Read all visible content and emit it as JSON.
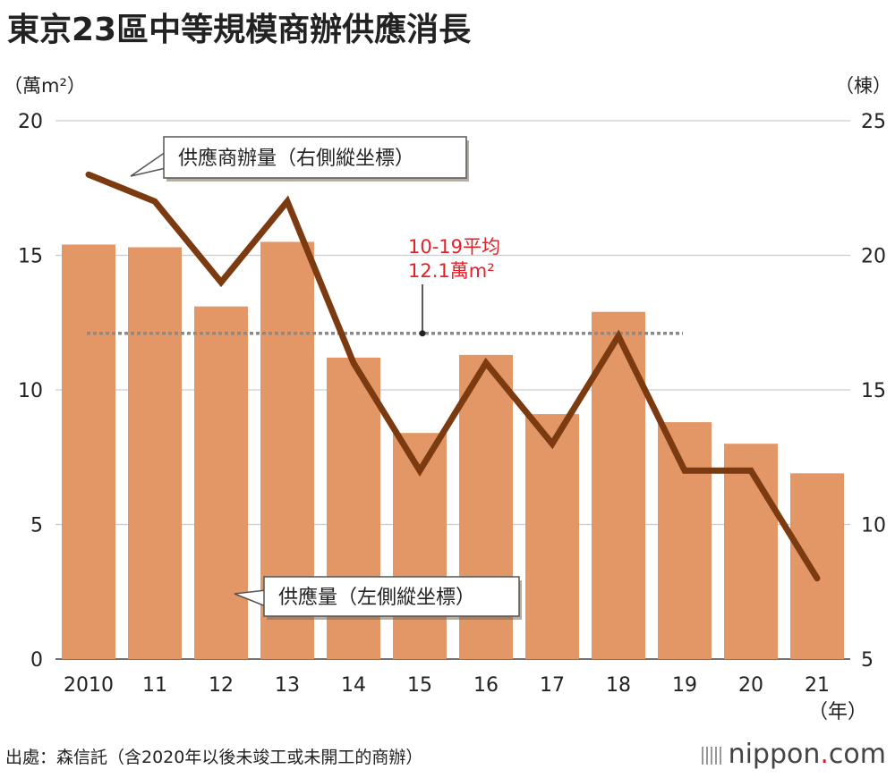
{
  "title": "東京23區中等規模商辦供應消長",
  "source": "出處：森信託（含2020年以後未竣工或未開工的商辦）",
  "logo": {
    "name": "nippon",
    "dot": ".",
    "suffix": "com"
  },
  "colors": {
    "bar": "#e39766",
    "line": "#7b3a10",
    "avg": "#8a8a8a",
    "grid": "#cccccc",
    "avg_label": "#e5202a"
  },
  "chart_data": {
    "type": "bar+line",
    "categories": [
      "2010",
      "11",
      "12",
      "13",
      "14",
      "15",
      "16",
      "17",
      "18",
      "19",
      "20",
      "21"
    ],
    "x_unit": "（年）",
    "left_axis": {
      "unit": "（萬m²）",
      "ticks": [
        "0",
        "5",
        "10",
        "15",
        "20"
      ],
      "ylim": [
        0,
        20
      ]
    },
    "right_axis": {
      "unit": "（棟）",
      "ticks": [
        "5",
        "10",
        "15",
        "20",
        "25"
      ],
      "ylim": [
        5,
        25
      ]
    },
    "series": [
      {
        "name": "供應量（左側縱坐標）",
        "type": "bar",
        "axis": "left",
        "values": [
          15.4,
          15.3,
          13.1,
          15.5,
          11.2,
          8.4,
          11.3,
          9.1,
          12.9,
          8.8,
          8.0,
          6.9
        ]
      },
      {
        "name": "供應商辦量（右側縱坐標）",
        "type": "line",
        "axis": "right",
        "values": [
          23,
          22,
          19,
          22,
          16,
          12,
          16,
          13,
          17,
          12,
          12,
          8
        ]
      }
    ],
    "average": {
      "label_line1": "10-19平均",
      "label_line2": "12.1萬m²",
      "value": 12.1
    }
  }
}
